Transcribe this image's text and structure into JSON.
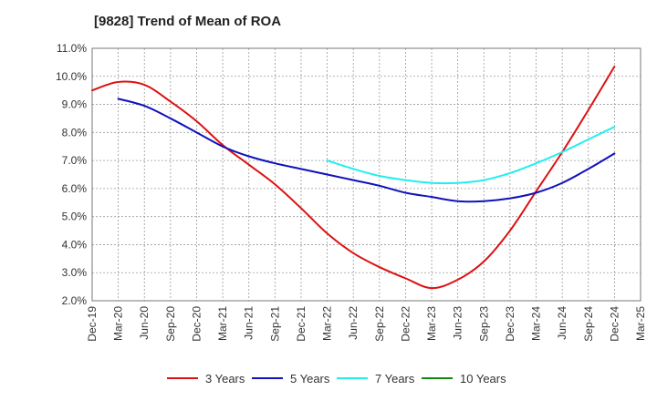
{
  "chart_data": {
    "type": "line",
    "title": "[9828]  Trend of Mean of ROA",
    "xlabel": "",
    "ylabel": "",
    "ylim": [
      2.0,
      11.0
    ],
    "y_ticks": [
      "2.0%",
      "3.0%",
      "4.0%",
      "5.0%",
      "6.0%",
      "7.0%",
      "8.0%",
      "9.0%",
      "10.0%",
      "11.0%"
    ],
    "categories": [
      "Dec-19",
      "Mar-20",
      "Jun-20",
      "Sep-20",
      "Dec-20",
      "Mar-21",
      "Jun-21",
      "Sep-21",
      "Dec-21",
      "Mar-22",
      "Jun-22",
      "Sep-22",
      "Dec-22",
      "Mar-23",
      "Jun-23",
      "Sep-23",
      "Dec-23",
      "Mar-24",
      "Jun-24",
      "Sep-24",
      "Dec-24",
      "Mar-25"
    ],
    "grid": true,
    "legend_position": "bottom",
    "series": [
      {
        "name": "3 Years",
        "color": "#dd1111",
        "values": [
          9.5,
          9.8,
          9.7,
          9.1,
          8.4,
          7.55,
          6.85,
          6.15,
          5.3,
          4.4,
          3.7,
          3.2,
          2.8,
          2.45,
          2.75,
          3.4,
          4.5,
          5.9,
          7.3,
          8.8,
          10.35,
          null
        ]
      },
      {
        "name": "5 Years",
        "color": "#1111bb",
        "values": [
          null,
          9.2,
          8.95,
          8.5,
          8.0,
          7.5,
          7.15,
          6.9,
          6.7,
          6.5,
          6.3,
          6.1,
          5.85,
          5.7,
          5.55,
          5.55,
          5.65,
          5.85,
          6.2,
          6.7,
          7.25,
          null
        ]
      },
      {
        "name": "7 Years",
        "color": "#22eeee",
        "values": [
          null,
          null,
          null,
          null,
          null,
          null,
          null,
          null,
          null,
          7.0,
          6.7,
          6.45,
          6.3,
          6.2,
          6.2,
          6.3,
          6.55,
          6.9,
          7.3,
          7.75,
          8.2,
          null
        ]
      },
      {
        "name": "10 Years",
        "color": "#118811",
        "values": [
          null,
          null,
          null,
          null,
          null,
          null,
          null,
          null,
          null,
          null,
          null,
          null,
          null,
          null,
          null,
          null,
          null,
          null,
          null,
          null,
          null,
          null
        ]
      }
    ]
  }
}
